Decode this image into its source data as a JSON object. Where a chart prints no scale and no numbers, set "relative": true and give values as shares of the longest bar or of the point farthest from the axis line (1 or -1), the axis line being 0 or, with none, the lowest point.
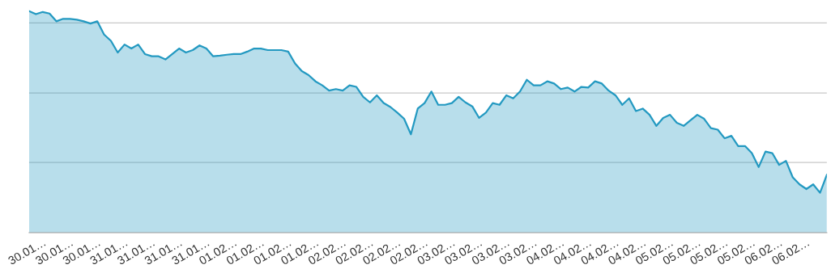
{
  "chart_data": {
    "type": "area",
    "relative": true,
    "ref_lines": [
      {
        "axis": "y",
        "value": 0.317,
        "color": "#c8c8c8"
      },
      {
        "axis": "y",
        "value": 0.63,
        "color": "#c8c8c8"
      },
      {
        "axis": "y",
        "value": 0.947,
        "color": "#c8c8c8"
      }
    ],
    "categories": [
      null,
      null,
      "30.01…",
      null,
      null,
      null,
      "30.01…",
      null,
      null,
      null,
      "30.01…",
      null,
      null,
      null,
      "31.01…",
      null,
      null,
      null,
      "31.01…",
      null,
      null,
      null,
      "31.01…",
      null,
      null,
      null,
      "31.01…",
      null,
      null,
      null,
      "01.02…",
      null,
      null,
      null,
      "01.02…",
      null,
      null,
      null,
      "01.02…",
      null,
      null,
      null,
      "01.02…",
      null,
      null,
      null,
      "02.02…",
      null,
      null,
      null,
      "02.02…",
      null,
      null,
      null,
      "02.02…",
      null,
      null,
      null,
      "02.02…",
      null,
      null,
      null,
      "03.02…",
      null,
      null,
      null,
      "03.02…",
      null,
      null,
      null,
      "03.02…",
      null,
      null,
      null,
      "03.02…",
      null,
      null,
      null,
      "04.02…",
      null,
      null,
      null,
      "04.02…",
      null,
      null,
      null,
      "04.02…",
      null,
      null,
      null,
      "04.02…",
      null,
      null,
      null,
      "05.02…",
      null,
      null,
      null,
      "05.02…",
      null,
      null,
      null,
      "05.02…",
      null,
      null,
      null,
      "05.02…",
      null,
      null,
      null,
      "06.02…",
      null,
      null,
      null,
      "06.02…",
      null,
      null,
      null
    ],
    "series": [
      {
        "color": "#2399c1",
        "values": [
          1.0,
          0.986,
          0.996,
          0.989,
          0.954,
          0.965,
          0.965,
          0.961,
          0.954,
          0.944,
          0.954,
          0.894,
          0.866,
          0.813,
          0.849,
          0.831,
          0.849,
          0.806,
          0.796,
          0.796,
          0.782,
          0.806,
          0.831,
          0.813,
          0.824,
          0.845,
          0.831,
          0.796,
          0.799,
          0.803,
          0.806,
          0.806,
          0.817,
          0.831,
          0.831,
          0.824,
          0.824,
          0.824,
          0.817,
          0.764,
          0.729,
          0.711,
          0.683,
          0.665,
          0.641,
          0.648,
          0.641,
          0.665,
          0.658,
          0.613,
          0.588,
          0.62,
          0.585,
          0.567,
          0.542,
          0.514,
          0.444,
          0.56,
          0.585,
          0.637,
          0.577,
          0.577,
          0.585,
          0.613,
          0.588,
          0.57,
          0.518,
          0.542,
          0.585,
          0.577,
          0.62,
          0.606,
          0.637,
          0.69,
          0.665,
          0.665,
          0.683,
          0.673,
          0.648,
          0.655,
          0.637,
          0.658,
          0.655,
          0.683,
          0.673,
          0.641,
          0.62,
          0.577,
          0.606,
          0.549,
          0.56,
          0.532,
          0.482,
          0.518,
          0.532,
          0.496,
          0.482,
          0.507,
          0.532,
          0.514,
          0.472,
          0.465,
          0.426,
          0.437,
          0.391,
          0.391,
          0.359,
          0.296,
          0.366,
          0.359,
          0.306,
          0.324,
          0.25,
          0.218,
          0.197,
          0.218,
          0.18,
          0.261
        ]
      }
    ]
  }
}
